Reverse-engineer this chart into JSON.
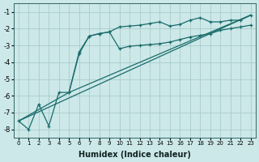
{
  "xlabel": "Humidex (Indice chaleur)",
  "xlim": [
    -0.5,
    23.5
  ],
  "ylim": [
    -8.5,
    -0.5
  ],
  "bg_color": "#cce8e8",
  "grid_color": "#aacccc",
  "line_color": "#1a6b6b",
  "series": [
    {
      "x": [
        0,
        23
      ],
      "y": [
        -7.5,
        -1.2
      ],
      "has_marker": false
    },
    {
      "x": [
        0,
        5,
        23
      ],
      "y": [
        -7.5,
        -5.8,
        -1.2
      ],
      "has_marker": false
    },
    {
      "x": [
        0,
        1,
        2,
        3,
        4,
        5,
        6,
        7,
        8,
        9,
        10,
        11,
        12,
        13,
        14,
        15,
        16,
        17,
        18,
        19,
        20,
        21,
        22,
        23
      ],
      "y": [
        -7.5,
        -8.0,
        -6.5,
        -7.8,
        -5.8,
        -5.8,
        -3.4,
        -2.45,
        -2.3,
        -2.2,
        -1.9,
        -1.85,
        -1.8,
        -1.7,
        -1.6,
        -1.85,
        -1.75,
        -1.5,
        -1.35,
        -1.6,
        -1.6,
        -1.5,
        -1.5,
        -1.2
      ],
      "has_marker": true
    },
    {
      "x": [
        5,
        6,
        7,
        8,
        9,
        10,
        11,
        12,
        13,
        14,
        15,
        16,
        17,
        18,
        19,
        20,
        21,
        22,
        23
      ],
      "y": [
        -5.8,
        -3.5,
        -2.45,
        -2.3,
        -2.2,
        -3.2,
        -3.05,
        -3.0,
        -2.95,
        -2.9,
        -2.8,
        -2.65,
        -2.5,
        -2.4,
        -2.3,
        -2.1,
        -2.0,
        -1.9,
        -1.8
      ],
      "has_marker": true
    }
  ]
}
